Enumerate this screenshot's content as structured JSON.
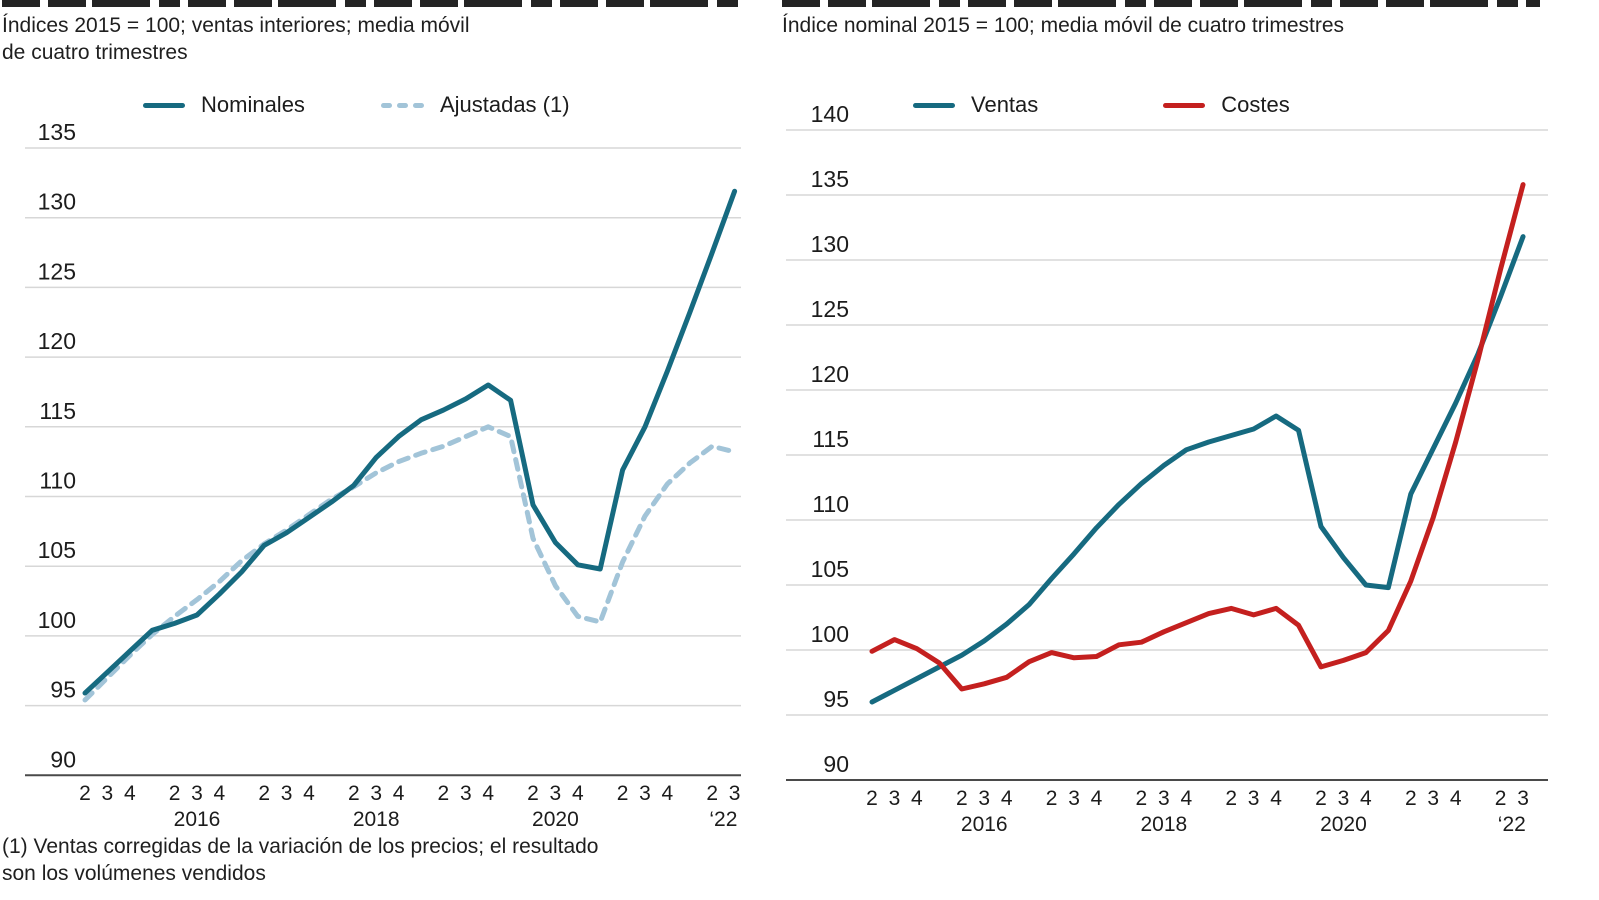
{
  "colors": {
    "teal": "#166a80",
    "light_blue_dashed": "#a2c4d8",
    "red": "#c4201f",
    "gridline": "#d7d7d7",
    "axis_line": "#4a4a4a",
    "text": "#1c1c1c"
  },
  "footnote_lines": [
    "(1) Ventas corregidas de la variación de los precios; el resultado",
    "son los volúmenes vendidos"
  ],
  "chart_data": [
    {
      "type": "line",
      "subtitle_lines": [
        "Índices 2015 = 100; ventas interiores; media móvil",
        "de cuatro trimestres"
      ],
      "x": [
        "2015Q2",
        "2015Q3",
        "2015Q4",
        "2016Q1",
        "2016Q2",
        "2016Q3",
        "2016Q4",
        "2017Q1",
        "2017Q2",
        "2017Q3",
        "2017Q4",
        "2018Q1",
        "2018Q2",
        "2018Q3",
        "2018Q4",
        "2019Q1",
        "2019Q2",
        "2019Q3",
        "2019Q4",
        "2020Q1",
        "2020Q2",
        "2020Q3",
        "2020Q4",
        "2021Q1",
        "2021Q2",
        "2021Q3",
        "2021Q4",
        "2022Q1",
        "2022Q2",
        "2022Q3"
      ],
      "series": [
        {
          "name": "Nominales",
          "color": "#166a80",
          "style": "solid",
          "values": [
            95.9,
            97.4,
            98.9,
            100.4,
            100.9,
            101.5,
            103.0,
            104.6,
            106.5,
            107.4,
            108.5,
            109.6,
            110.8,
            112.8,
            114.3,
            115.5,
            116.2,
            117.0,
            118.0,
            116.9,
            109.4,
            106.7,
            105.1,
            104.8,
            111.9,
            115.0,
            119.0,
            123.2,
            127.5,
            131.9
          ]
        },
        {
          "name": "Ajustadas (1)",
          "color": "#a2c4d8",
          "style": "dashed",
          "values": [
            95.4,
            97.0,
            98.6,
            100.1,
            101.4,
            102.6,
            103.9,
            105.4,
            106.6,
            107.6,
            108.7,
            109.8,
            110.7,
            111.7,
            112.5,
            113.1,
            113.6,
            114.3,
            115.0,
            114.3,
            107.0,
            103.6,
            101.4,
            101.0,
            105.3,
            108.6,
            110.9,
            112.4,
            113.6,
            113.2
          ]
        }
      ],
      "ylim": [
        90,
        135
      ],
      "yticks": [
        135,
        130,
        125,
        120,
        115,
        110,
        105,
        100,
        95,
        90
      ],
      "quarter_ticks": {
        "indices": [
          0,
          1,
          2,
          4,
          5,
          6,
          8,
          9,
          10,
          12,
          13,
          14,
          16,
          17,
          18,
          20,
          21,
          22,
          24,
          25,
          26,
          28,
          29
        ],
        "labels": [
          "2",
          "3",
          "4",
          "2",
          "3",
          "4",
          "2",
          "3",
          "4",
          "2",
          "3",
          "4",
          "2",
          "3",
          "4",
          "2",
          "3",
          "4",
          "2",
          "3",
          "4",
          "2",
          "3"
        ]
      },
      "year_ticks": [
        {
          "i": 5,
          "label": "2016"
        },
        {
          "i": 13,
          "label": "2018"
        },
        {
          "i": 21,
          "label": "2020"
        },
        {
          "i": 28.5,
          "label": "‘22"
        }
      ],
      "grid": "horizontal",
      "legend_position": "top"
    },
    {
      "type": "line",
      "subtitle_lines": [
        "Índice nominal 2015 = 100; media móvil de cuatro trimestres"
      ],
      "x": [
        "2015Q2",
        "2015Q3",
        "2015Q4",
        "2016Q1",
        "2016Q2",
        "2016Q3",
        "2016Q4",
        "2017Q1",
        "2017Q2",
        "2017Q3",
        "2017Q4",
        "2018Q1",
        "2018Q2",
        "2018Q3",
        "2018Q4",
        "2019Q1",
        "2019Q2",
        "2019Q3",
        "2019Q4",
        "2020Q1",
        "2020Q2",
        "2020Q3",
        "2020Q4",
        "2021Q1",
        "2021Q2",
        "2021Q3",
        "2021Q4",
        "2022Q1",
        "2022Q2",
        "2022Q3"
      ],
      "series": [
        {
          "name": "Ventas",
          "color": "#166a80",
          "style": "solid",
          "values": [
            96.0,
            96.9,
            97.8,
            98.7,
            99.6,
            100.7,
            102.0,
            103.5,
            105.5,
            107.4,
            109.4,
            111.2,
            112.8,
            114.2,
            115.4,
            116.0,
            116.5,
            117.0,
            118.0,
            116.9,
            109.5,
            107.1,
            105.0,
            104.8,
            112.0,
            115.5,
            119.0,
            122.8,
            127.2,
            131.8
          ]
        },
        {
          "name": "Costes",
          "color": "#c4201f",
          "style": "solid",
          "values": [
            99.9,
            100.8,
            100.1,
            99.0,
            97.0,
            97.4,
            97.9,
            99.1,
            99.8,
            99.4,
            99.5,
            100.4,
            100.6,
            101.4,
            102.1,
            102.8,
            103.2,
            102.7,
            103.2,
            101.9,
            98.7,
            99.2,
            99.8,
            101.5,
            105.3,
            110.2,
            116.0,
            122.4,
            129.3,
            135.8
          ]
        }
      ],
      "ylim": [
        90,
        140
      ],
      "yticks": [
        140,
        135,
        130,
        125,
        120,
        115,
        110,
        105,
        100,
        95,
        90
      ],
      "quarter_ticks": {
        "indices": [
          0,
          1,
          2,
          4,
          5,
          6,
          8,
          9,
          10,
          12,
          13,
          14,
          16,
          17,
          18,
          20,
          21,
          22,
          24,
          25,
          26,
          28,
          29
        ],
        "labels": [
          "2",
          "3",
          "4",
          "2",
          "3",
          "4",
          "2",
          "3",
          "4",
          "2",
          "3",
          "4",
          "2",
          "3",
          "4",
          "2",
          "3",
          "4",
          "2",
          "3",
          "4",
          "2",
          "3"
        ]
      },
      "year_ticks": [
        {
          "i": 5,
          "label": "2016"
        },
        {
          "i": 13,
          "label": "2018"
        },
        {
          "i": 21,
          "label": "2020"
        },
        {
          "i": 28.5,
          "label": "‘22"
        }
      ],
      "grid": "horizontal",
      "legend_position": "top"
    }
  ]
}
